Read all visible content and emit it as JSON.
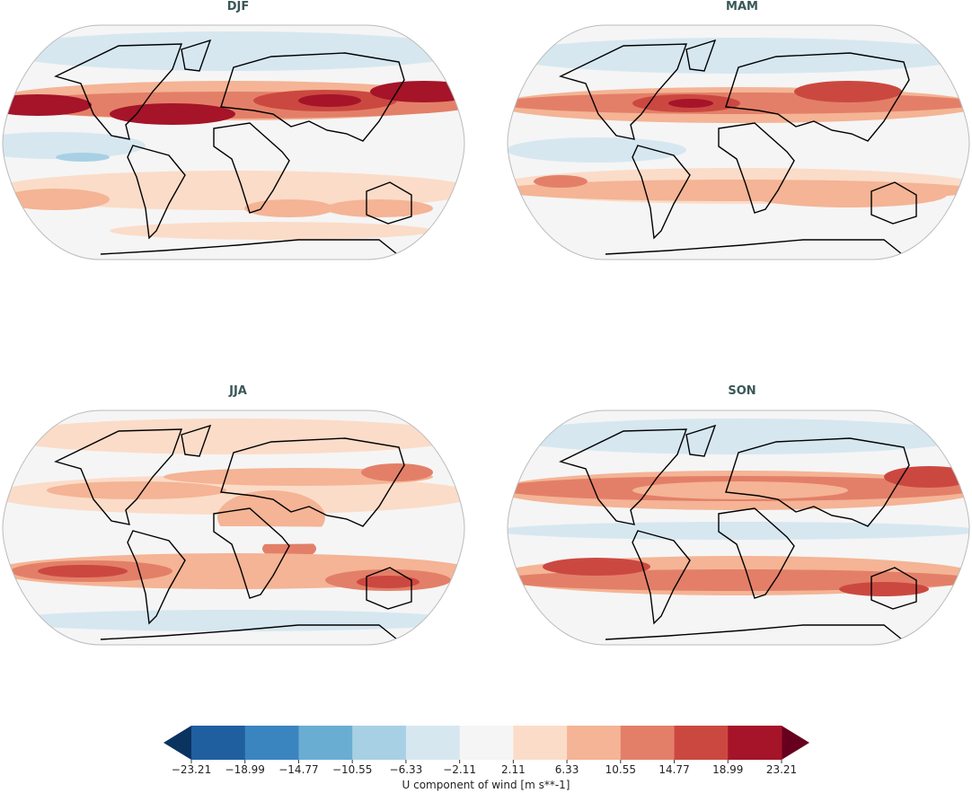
{
  "panels": [
    {
      "title": "DJF"
    },
    {
      "title": "MAM"
    },
    {
      "title": "JJA"
    },
    {
      "title": "SON"
    }
  ],
  "colorbar": {
    "label": "U component of wind [m s**-1]",
    "ticks": [
      "−23.21",
      "−18.99",
      "−14.77",
      "−10.55",
      "−6.33",
      "−2.11",
      "2.11",
      "6.33",
      "10.55",
      "14.77",
      "18.99",
      "23.21"
    ],
    "under_color": "#0b3360",
    "over_color": "#67001f",
    "colors": [
      "#1f5fa0",
      "#3a85c0",
      "#6aadd3",
      "#a8d0e5",
      "#d6e7f0",
      "#f5f5f5",
      "#fbdcc8",
      "#f4b495",
      "#e37f68",
      "#cb4840",
      "#a51428"
    ]
  }
}
